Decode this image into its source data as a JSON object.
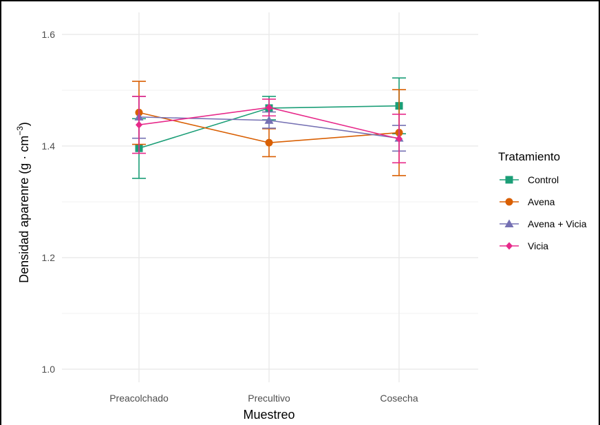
{
  "chart_data": {
    "type": "line",
    "xlabel": "Muestreo",
    "ylabel": "Densidad aparenre (g · cm",
    "ylabel_exponent": "−3",
    "ylabel_close": ")",
    "categories": [
      "Preacolchado",
      "Precultivo",
      "Cosecha"
    ],
    "ylim": [
      0.975,
      1.625
    ],
    "yticks": [
      1.0,
      1.2,
      1.4,
      1.6
    ],
    "ytick_labels": [
      "1.0",
      "1.2",
      "1.4",
      "1.6"
    ],
    "grid": true,
    "legend": {
      "title": "Tratamiento",
      "position": "right"
    },
    "series": [
      {
        "name": "Control",
        "color": "#1b9e77",
        "marker": "square",
        "values": [
          1.396,
          1.468,
          1.472
        ],
        "lower": [
          1.342,
          1.447,
          1.422
        ],
        "upper": [
          1.449,
          1.489,
          1.522
        ]
      },
      {
        "name": "Avena",
        "color": "#d95f02",
        "marker": "circle",
        "values": [
          1.46,
          1.406,
          1.424
        ],
        "lower": [
          1.403,
          1.381,
          1.347
        ],
        "upper": [
          1.516,
          1.431,
          1.501
        ]
      },
      {
        "name": "Avena + Vicia",
        "color": "#7570b3",
        "marker": "triangle",
        "values": [
          1.452,
          1.446,
          1.414
        ],
        "lower": [
          1.414,
          1.432,
          1.391
        ],
        "upper": [
          1.489,
          1.461,
          1.437
        ]
      },
      {
        "name": "Vicia",
        "color": "#e7298a",
        "marker": "diamond",
        "values": [
          1.438,
          1.469,
          1.413
        ],
        "lower": [
          1.387,
          1.454,
          1.37
        ],
        "upper": [
          1.489,
          1.484,
          1.457
        ]
      }
    ]
  }
}
